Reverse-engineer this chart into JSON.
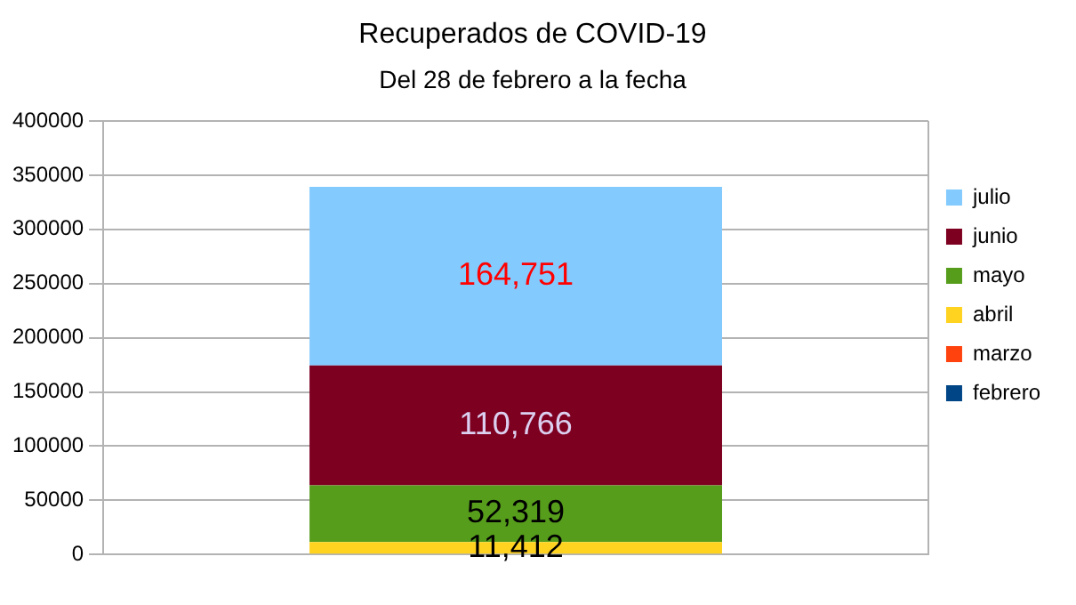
{
  "chart_data": {
    "type": "bar",
    "title": "Recuperados de COVID-19",
    "subtitle": "Del 28 de febrero a la fecha",
    "categories": [
      null
    ],
    "stacked": true,
    "series": [
      {
        "name": "febrero",
        "color": "#004586",
        "values": [
          0
        ]
      },
      {
        "name": "marzo",
        "color": "#ff420e",
        "values": [
          0
        ]
      },
      {
        "name": "abril",
        "color": "#ffd320",
        "values": [
          11412
        ],
        "value_labels": [
          "11,412"
        ]
      },
      {
        "name": "mayo",
        "color": "#579d1c",
        "values": [
          52319
        ],
        "value_labels": [
          "52,319"
        ]
      },
      {
        "name": "junio",
        "color": "#7e0021",
        "values": [
          110766
        ],
        "value_labels": [
          "110,766"
        ]
      },
      {
        "name": "julio",
        "color": "#83caff",
        "values": [
          164751
        ],
        "value_labels": [
          "164,751"
        ]
      }
    ],
    "ylim": [
      0,
      400000
    ],
    "yticks": [
      0,
      50000,
      100000,
      150000,
      200000,
      250000,
      300000,
      350000,
      400000
    ],
    "grid": true,
    "legend": "right"
  }
}
